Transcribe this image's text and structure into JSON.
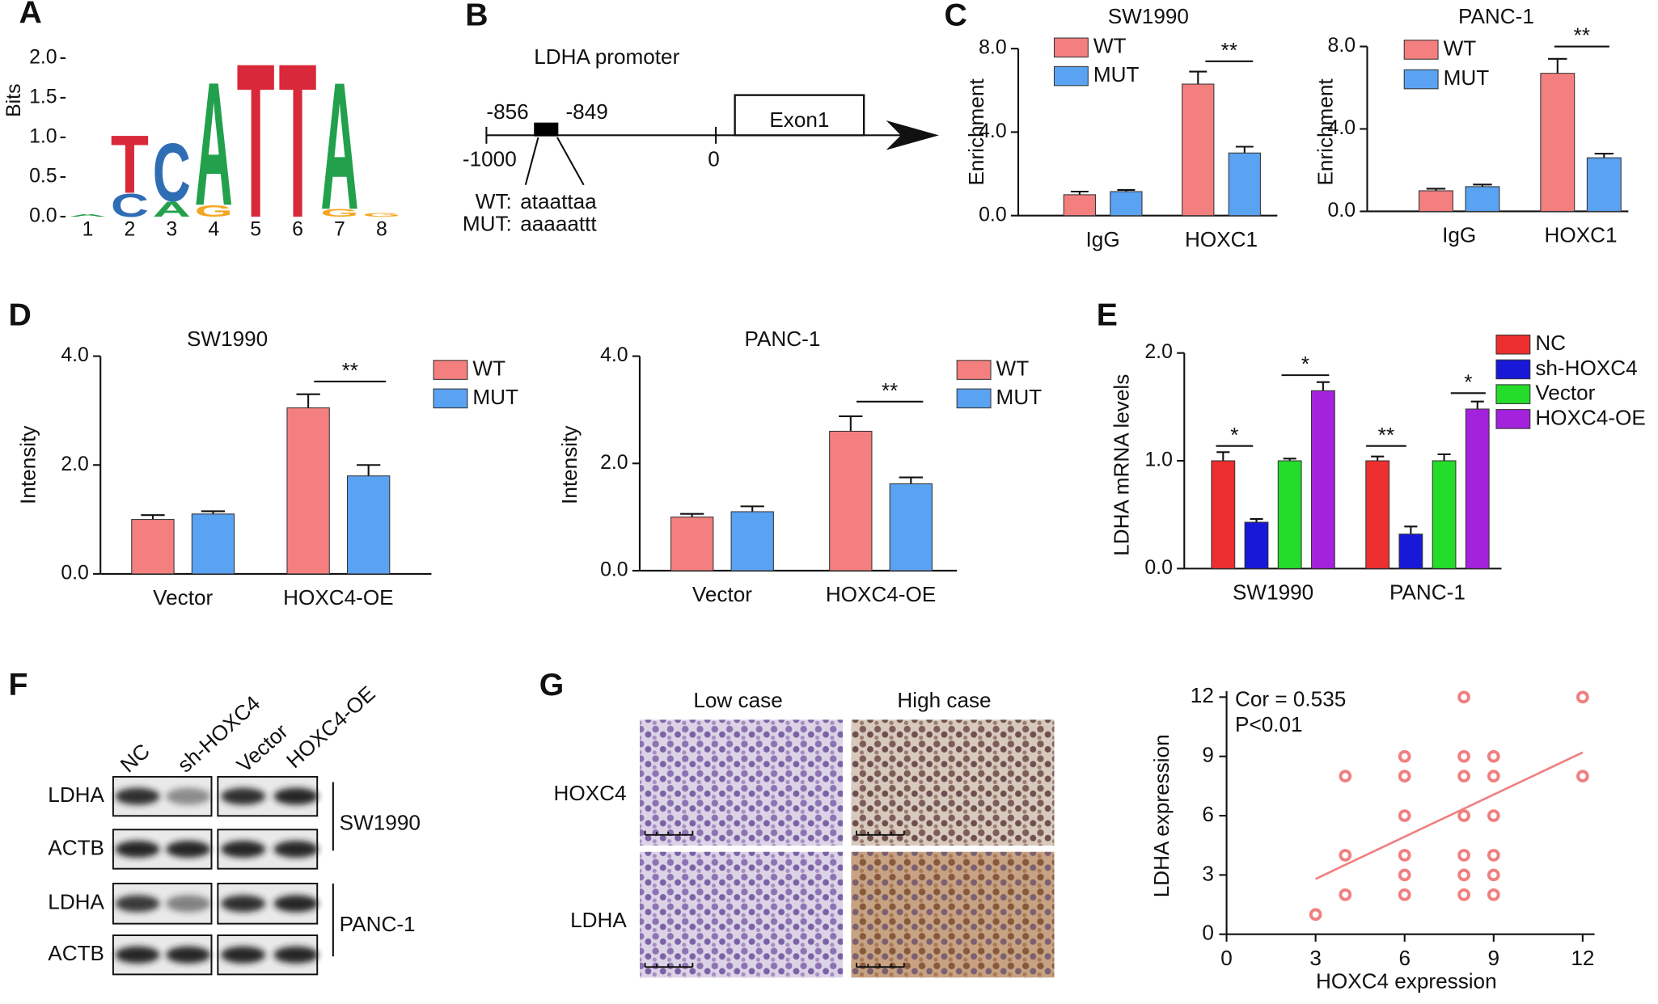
{
  "panels": [
    "A",
    "B",
    "C",
    "D",
    "E",
    "F",
    "G"
  ],
  "promoter": {
    "title": "LDHA promoter",
    "site_start": "-856",
    "site_end": "-849",
    "start": "-1000",
    "tss": "0",
    "exon": "Exon1",
    "wt_label": "WT:",
    "wt_seq": "ataattaa",
    "mut_label": "MUT:",
    "mut_seq": "aaaaattt"
  },
  "blot": {
    "lanes": [
      "NC",
      "sh-HOXC4",
      "Vector",
      "HOXC4-OE"
    ],
    "rows": [
      "LDHA",
      "ACTB",
      "LDHA",
      "ACTB"
    ],
    "groups": [
      "SW1990",
      "PANC-1"
    ]
  },
  "ihc": {
    "columns": [
      "Low case",
      "High case"
    ],
    "rows": [
      "HOXC4",
      "LDHA"
    ]
  },
  "chart_data": [
    {
      "type": "logo",
      "ylabel": "Bits",
      "categories": [
        "1",
        "2",
        "3",
        "4",
        "5",
        "6",
        "7",
        "8"
      ],
      "stacks": [
        [
          {
            "letter": "A",
            "value": 0.03
          }
        ],
        [
          {
            "letter": "C",
            "value": 0.3
          },
          {
            "letter": "T",
            "value": 0.75
          }
        ],
        [
          {
            "letter": "A",
            "value": 0.2
          },
          {
            "letter": "C",
            "value": 0.75
          }
        ],
        [
          {
            "letter": "G",
            "value": 0.15
          },
          {
            "letter": "A",
            "value": 1.6
          }
        ],
        [
          {
            "letter": "T",
            "value": 2
          }
        ],
        [
          {
            "letter": "T",
            "value": 2
          }
        ],
        [
          {
            "letter": "G",
            "value": 0.1
          },
          {
            "letter": "A",
            "value": 1.65
          }
        ],
        [
          {
            "letter": "G",
            "value": 0.05
          }
        ]
      ],
      "colors": {
        "A": "#23a04c",
        "C": "#2f6db5",
        "G": "#f4a622",
        "T": "#d8283a"
      },
      "ylim": [
        0,
        2
      ],
      "yticks": [
        {
          "value": 0,
          "label": "0.0"
        },
        {
          "value": 0.5,
          "label": "0.5"
        },
        {
          "value": 1,
          "label": "1.0"
        },
        {
          "value": 1.5,
          "label": "1.5"
        },
        {
          "value": 2,
          "label": "2.0"
        }
      ]
    },
    {
      "type": "bar",
      "title": "SW1990",
      "ylabel": "Enrichment",
      "categories": [
        "IgG",
        "HOXC1"
      ],
      "series": [
        {
          "name": "WT",
          "color": "#f47f7f",
          "values": [
            1.0,
            6.3
          ],
          "errors": [
            0.15,
            0.6
          ]
        },
        {
          "name": "MUT",
          "color": "#5aa2f2",
          "values": [
            1.15,
            3.0
          ],
          "errors": [
            0.08,
            0.3
          ]
        }
      ],
      "ylim": [
        0,
        8
      ],
      "yticks": [
        {
          "value": 0,
          "label": "0.0"
        },
        {
          "value": 4,
          "label": "4.0"
        },
        {
          "value": 8,
          "label": "8.0"
        }
      ],
      "annotations": [
        "**"
      ]
    },
    {
      "type": "bar",
      "title": "PANC-1",
      "ylabel": "Enrichment",
      "categories": [
        "IgG",
        "HOXC1"
      ],
      "series": [
        {
          "name": "WT",
          "color": "#f47f7f",
          "values": [
            1.0,
            6.7
          ],
          "errors": [
            0.1,
            0.7
          ]
        },
        {
          "name": "MUT",
          "color": "#5aa2f2",
          "values": [
            1.2,
            2.6
          ],
          "errors": [
            0.1,
            0.2
          ]
        }
      ],
      "ylim": [
        0,
        8
      ],
      "yticks": [
        {
          "value": 0,
          "label": "0.0"
        },
        {
          "value": 4,
          "label": "4.0"
        },
        {
          "value": 8,
          "label": "8.0"
        }
      ],
      "annotations": [
        "**"
      ]
    },
    {
      "type": "bar",
      "title": "SW1990",
      "ylabel": "Intensity",
      "categories": [
        "Vector",
        "HOXC4-OE"
      ],
      "series": [
        {
          "name": "WT",
          "color": "#f47f7f",
          "values": [
            1.0,
            3.05
          ],
          "errors": [
            0.08,
            0.25
          ]
        },
        {
          "name": "MUT",
          "color": "#5aa2f2",
          "values": [
            1.1,
            1.8
          ],
          "errors": [
            0.05,
            0.2
          ]
        }
      ],
      "ylim": [
        0,
        4
      ],
      "yticks": [
        {
          "value": 0,
          "label": "0.0"
        },
        {
          "value": 2,
          "label": "2.0"
        },
        {
          "value": 4,
          "label": "4.0"
        }
      ],
      "annotations": [
        "**"
      ]
    },
    {
      "type": "bar",
      "title": "PANC-1",
      "ylabel": "Intensity",
      "categories": [
        "Vector",
        "HOXC4-OE"
      ],
      "series": [
        {
          "name": "WT",
          "color": "#f47f7f",
          "values": [
            1.0,
            2.6
          ],
          "errors": [
            0.06,
            0.28
          ]
        },
        {
          "name": "MUT",
          "color": "#5aa2f2",
          "values": [
            1.1,
            1.62
          ],
          "errors": [
            0.1,
            0.12
          ]
        }
      ],
      "ylim": [
        0,
        4
      ],
      "yticks": [
        {
          "value": 0,
          "label": "0.0"
        },
        {
          "value": 2,
          "label": "2.0"
        },
        {
          "value": 4,
          "label": "4.0"
        }
      ],
      "annotations": [
        "**"
      ]
    },
    {
      "type": "bar",
      "ylabel": "LDHA mRNA levels",
      "categories": [
        "SW1990",
        "PANC-1"
      ],
      "series": [
        {
          "name": "NC",
          "color": "#ee2f2f",
          "values": [
            1.0,
            1.0
          ],
          "errors": [
            0.08,
            0.04
          ]
        },
        {
          "name": "sh-HOXC4",
          "color": "#1818d8",
          "values": [
            0.43,
            0.32
          ],
          "errors": [
            0.03,
            0.07
          ]
        },
        {
          "name": "Vector",
          "color": "#24dc2a",
          "values": [
            1.0,
            1.0
          ],
          "errors": [
            0.02,
            0.06
          ]
        },
        {
          "name": "HOXC4-OE",
          "color": "#a322dc",
          "values": [
            1.65,
            1.48
          ],
          "errors": [
            0.08,
            0.07
          ]
        }
      ],
      "ylim": [
        0,
        2
      ],
      "yticks": [
        {
          "value": 0,
          "label": "0.0"
        },
        {
          "value": 1,
          "label": "1.0"
        },
        {
          "value": 2,
          "label": "2.0"
        }
      ],
      "annotations": [
        "*",
        "*",
        "**",
        "*"
      ]
    },
    {
      "type": "scatter",
      "xlabel": "HOXC4 expression",
      "ylabel": "LDHA expression",
      "annotations": [
        "Cor = 0.535",
        "P<0.01"
      ],
      "x": [
        3,
        4,
        4,
        4,
        6,
        6,
        6,
        6,
        6,
        6,
        8,
        8,
        8,
        8,
        8,
        8,
        8,
        9,
        9,
        9,
        9,
        9,
        9,
        12,
        12
      ],
      "y": [
        1,
        8,
        4,
        2,
        9,
        8,
        6,
        4,
        3,
        2,
        12,
        9,
        8,
        6,
        4,
        3,
        2,
        9,
        8,
        6,
        4,
        3,
        2,
        12,
        8
      ],
      "color": "#f07f7f",
      "trend": {
        "x": [
          3,
          12
        ],
        "y": [
          2.8,
          9.2
        ]
      },
      "xlim": [
        0,
        12.4
      ],
      "ylim": [
        0,
        12.3
      ],
      "xticks": [
        0,
        3,
        6,
        9,
        12
      ],
      "yticks": [
        0,
        3,
        6,
        9,
        12
      ]
    }
  ]
}
